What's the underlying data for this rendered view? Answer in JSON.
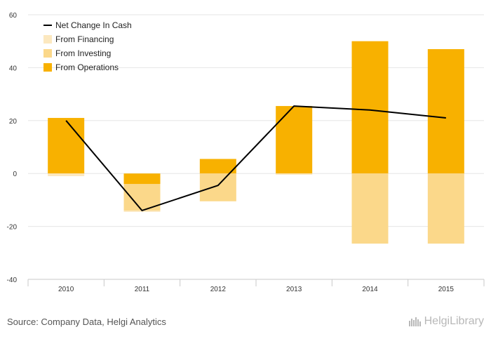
{
  "chart_data": {
    "type": "bar",
    "stacked": true,
    "categories": [
      "2010",
      "2011",
      "2012",
      "2013",
      "2014",
      "2015"
    ],
    "ylim": [
      -40,
      60
    ],
    "yticks": [
      -40,
      -20,
      0,
      20,
      40,
      60
    ],
    "grid": true,
    "legend_position": "top-left",
    "series": [
      {
        "name": "From Financing",
        "kind": "bar",
        "color": "#fce8bf",
        "values": [
          -1,
          -0.5,
          0,
          -0.5,
          0,
          0
        ]
      },
      {
        "name": "From Investing",
        "kind": "bar",
        "color": "#fbd88a",
        "values": [
          0,
          -10,
          -10.5,
          0,
          -26.5,
          -26.5
        ]
      },
      {
        "name": "From Operations",
        "kind": "bar",
        "color": "#f8b100",
        "values": [
          21,
          -4,
          5.5,
          25.5,
          50,
          47
        ]
      },
      {
        "name": "Net Change In Cash",
        "kind": "line",
        "color": "#000000",
        "values": [
          20,
          -14,
          -4.5,
          25.5,
          24,
          21
        ]
      }
    ]
  },
  "legend": {
    "items": [
      {
        "label": "Net Change In Cash",
        "kind": "line",
        "color": "#000000"
      },
      {
        "label": "From Financing",
        "kind": "box",
        "color": "#fce8bf"
      },
      {
        "label": "From Investing",
        "kind": "box",
        "color": "#fbd88a"
      },
      {
        "label": "From Operations",
        "kind": "box",
        "color": "#f8b100"
      }
    ]
  },
  "footer": {
    "source": "Source: Company Data, Helgi Analytics",
    "brand": "HelgiLibrary",
    "brand_icon": "helgi-logo-icon"
  }
}
